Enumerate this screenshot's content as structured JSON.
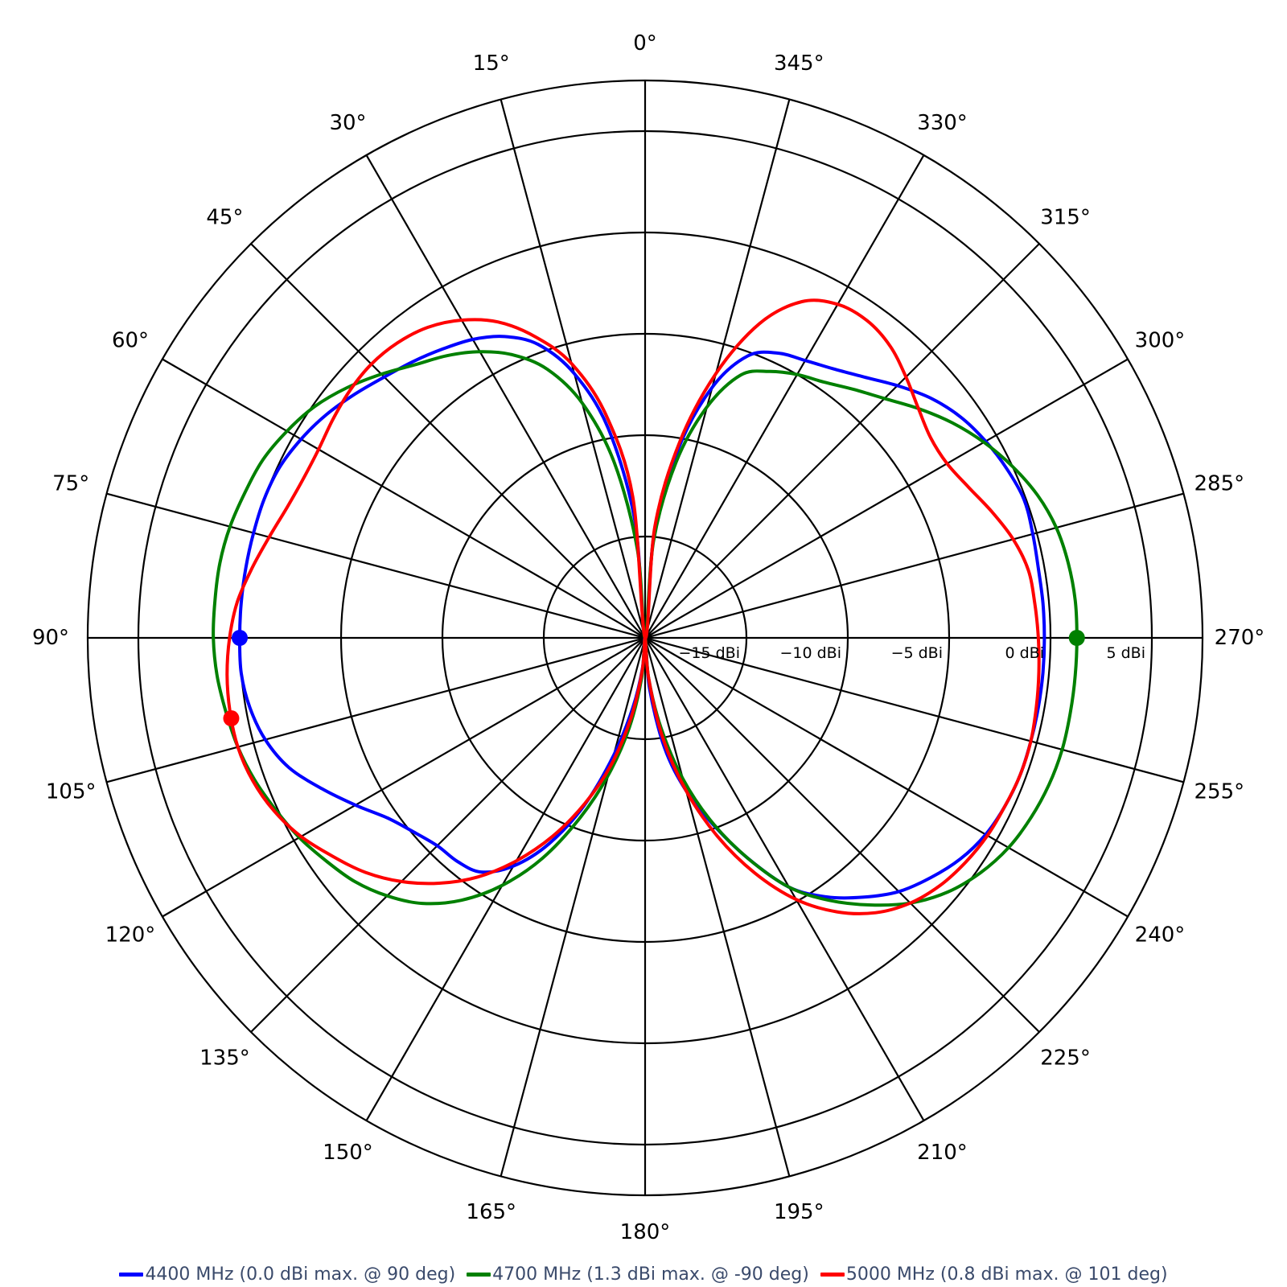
{
  "chart_data": {
    "type": "polar-line",
    "angle_direction": "counterclockwise",
    "angle_zero": "top",
    "angular_ticks": [
      "0°",
      "15°",
      "30°",
      "45°",
      "60°",
      "75°",
      "90°",
      "105°",
      "120°",
      "135°",
      "150°",
      "165°",
      "180°",
      "195°",
      "210°",
      "225°",
      "240°",
      "255°",
      "270°",
      "285°",
      "300°",
      "315°",
      "330°",
      "345°"
    ],
    "angular_tick_values": [
      0,
      15,
      30,
      45,
      60,
      75,
      90,
      105,
      120,
      135,
      150,
      165,
      180,
      195,
      210,
      225,
      240,
      255,
      270,
      285,
      300,
      315,
      330,
      345
    ],
    "radial_range": [
      -20,
      7.5
    ],
    "radial_ticks": [
      -15,
      -10,
      -5,
      0,
      5
    ],
    "radial_tick_labels": [
      "−15 dBi",
      "−10 dBi",
      "−5 dBi",
      "0 dBi",
      "5 dBi"
    ],
    "series": [
      {
        "name": "4400 MHz (0.0 dBi max. @ 90 deg)",
        "color": "#0000ff",
        "theta": [
          0,
          5,
          10,
          15,
          20,
          25,
          30,
          35,
          40,
          45,
          50,
          55,
          60,
          65,
          70,
          75,
          80,
          85,
          90,
          95,
          100,
          105,
          110,
          115,
          120,
          125,
          130,
          135,
          140,
          145,
          150,
          155,
          160,
          165,
          170,
          175,
          180,
          185,
          190,
          195,
          200,
          205,
          210,
          215,
          220,
          225,
          230,
          235,
          240,
          245,
          250,
          255,
          260,
          265,
          270,
          275,
          280,
          285,
          290,
          295,
          300,
          305,
          310,
          315,
          320,
          325,
          330,
          335,
          340,
          345,
          350,
          355
        ],
        "r": [
          -20,
          -14.2,
          -9.5,
          -6.5,
          -4.6,
          -3.6,
          -3.0,
          -2.6,
          -2.2,
          -1.8,
          -1.3,
          -0.8,
          -0.4,
          -0.1,
          0.0,
          0.0,
          0.0,
          0.0,
          0.0,
          0.0,
          -0.2,
          -0.6,
          -1.3,
          -2.4,
          -3.5,
          -4.5,
          -5.1,
          -5.5,
          -5.6,
          -5.9,
          -7.0,
          -8.8,
          -11.2,
          -14.0,
          -16.5,
          -18.5,
          -20,
          -17.5,
          -14.5,
          -12.2,
          -10.2,
          -8.0,
          -5.8,
          -4.4,
          -3.3,
          -2.3,
          -1.6,
          -1.0,
          -0.6,
          -0.4,
          -0.3,
          -0.3,
          -0.3,
          -0.3,
          -0.3,
          -0.3,
          -0.3,
          -0.2,
          -0.1,
          -0.3,
          -0.6,
          -1.0,
          -1.6,
          -2.4,
          -3.2,
          -3.8,
          -4.2,
          -4.5,
          -5.2,
          -7.2,
          -10.5,
          -14.8
        ]
      },
      {
        "name": "4700 MHz (1.3 dBi max. @ -90 deg)",
        "color": "#008000",
        "theta": [
          0,
          5,
          10,
          15,
          20,
          25,
          30,
          35,
          40,
          45,
          50,
          55,
          60,
          65,
          70,
          75,
          80,
          85,
          90,
          95,
          100,
          105,
          110,
          115,
          120,
          125,
          130,
          135,
          140,
          145,
          150,
          155,
          160,
          165,
          170,
          175,
          180,
          185,
          190,
          195,
          200,
          205,
          210,
          215,
          220,
          225,
          230,
          235,
          240,
          245,
          250,
          255,
          260,
          265,
          270,
          275,
          280,
          285,
          290,
          295,
          300,
          305,
          310,
          315,
          320,
          325,
          330,
          335,
          340,
          345,
          350,
          355
        ],
        "r": [
          -20,
          -15.6,
          -11.2,
          -8.0,
          -5.9,
          -4.6,
          -3.7,
          -3.0,
          -2.4,
          -1.6,
          -0.8,
          -0.1,
          0.4,
          0.8,
          1.0,
          1.2,
          1.3,
          1.3,
          1.3,
          1.2,
          1.0,
          0.8,
          0.5,
          0.1,
          -0.3,
          -0.8,
          -1.3,
          -2.0,
          -2.9,
          -4.2,
          -5.9,
          -8.0,
          -10.5,
          -13.0,
          -15.5,
          -18.0,
          -20,
          -18.0,
          -15.5,
          -12.8,
          -10.3,
          -8.0,
          -5.8,
          -4.2,
          -2.8,
          -1.5,
          -0.5,
          0.2,
          0.7,
          1.0,
          1.2,
          1.3,
          1.3,
          1.3,
          1.3,
          1.3,
          1.2,
          1.0,
          0.6,
          0.0,
          -0.7,
          -1.5,
          -2.4,
          -3.3,
          -4.0,
          -4.6,
          -5.0,
          -5.5,
          -6.2,
          -8.2,
          -11.2,
          -15.2
        ]
      },
      {
        "name": "5000 MHz (0.8 dBi max. @ 101 deg)",
        "color": "#ff0000",
        "theta": [
          0,
          5,
          10,
          15,
          20,
          25,
          30,
          35,
          40,
          45,
          50,
          55,
          60,
          65,
          70,
          75,
          80,
          85,
          90,
          95,
          100,
          105,
          110,
          115,
          120,
          125,
          130,
          135,
          140,
          145,
          150,
          155,
          160,
          165,
          170,
          175,
          180,
          185,
          190,
          195,
          200,
          205,
          210,
          215,
          220,
          225,
          230,
          235,
          240,
          245,
          250,
          255,
          260,
          265,
          270,
          275,
          280,
          285,
          290,
          295,
          300,
          305,
          310,
          315,
          320,
          325,
          330,
          335,
          340,
          345,
          350,
          355
        ],
        "r": [
          -20,
          -13.0,
          -8.8,
          -6.0,
          -4.2,
          -2.8,
          -1.9,
          -1.3,
          -1.0,
          -0.9,
          -1.0,
          -1.2,
          -1.4,
          -1.4,
          -1.2,
          -0.8,
          -0.3,
          0.2,
          0.5,
          0.7,
          0.8,
          0.8,
          0.6,
          0.2,
          -0.4,
          -1.2,
          -2.0,
          -3.0,
          -4.2,
          -5.6,
          -7.3,
          -9.2,
          -11.3,
          -13.5,
          -16.0,
          -18.4,
          -20,
          -18.0,
          -15.0,
          -12.2,
          -9.6,
          -7.2,
          -5.1,
          -3.5,
          -2.3,
          -1.5,
          -1.0,
          -0.7,
          -0.5,
          -0.4,
          -0.3,
          -0.3,
          -0.4,
          -0.5,
          -0.6,
          -0.7,
          -0.8,
          -1.2,
          -1.8,
          -2.4,
          -2.8,
          -2.8,
          -2.4,
          -1.8,
          -1.2,
          -0.9,
          -1.0,
          -1.7,
          -3.5,
          -6.5,
          -10.2,
          -14.5
        ]
      }
    ],
    "max_markers": [
      {
        "series": 0,
        "theta": 90,
        "r": 0.0
      },
      {
        "series": 1,
        "theta": 270,
        "r": 1.3
      },
      {
        "series": 2,
        "theta": 101,
        "r": 0.8
      }
    ],
    "legend_placement": "bottom",
    "grid": true
  }
}
